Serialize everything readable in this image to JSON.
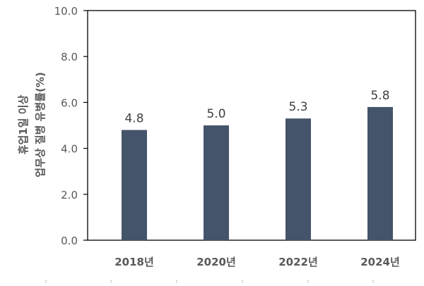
{
  "chart_data": {
    "type": "bar",
    "categories": [
      "2018년",
      "2020년",
      "2022년",
      "2024년"
    ],
    "values": [
      4.8,
      5.0,
      5.3,
      5.8
    ],
    "data_labels": [
      "4.8",
      "5.0",
      "5.3",
      "5.8"
    ],
    "ylabel_line1": "휴업1일 이상",
    "ylabel_line2": "업무상 질병 유병률(%)",
    "ylim": [
      0,
      10
    ],
    "yticks": [
      "0.0",
      "2.0",
      "4.0",
      "6.0",
      "8.0",
      "10.0"
    ],
    "ytick_values": [
      0,
      2,
      4,
      6,
      8,
      10
    ],
    "grid": false,
    "legend": "none",
    "bar_color": "#44546a",
    "axis_color": "#000000",
    "tick_label_color": "#595959",
    "ylabel_color": "#595959",
    "data_label_color": "#404040"
  }
}
